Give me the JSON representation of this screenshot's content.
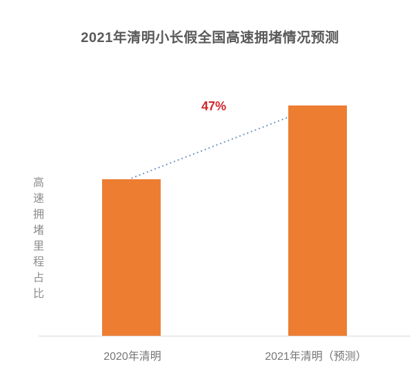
{
  "page": {
    "background": "#ffffff"
  },
  "colors": {
    "bar": "#ED7D31",
    "trendline": "#6F94C4",
    "annotation": "#D2232A",
    "axis_line": "#D9D9D9",
    "title_text": "#595959",
    "x_axis_label_text": "#757575",
    "y_axis_title_text": "#8C8C8C"
  },
  "chart_data": {
    "type": "bar",
    "title": "2021年清明小长假全国高速拥堵情况预测",
    "categories": [
      "2020年清明",
      "2021年清明（预测）"
    ],
    "values": [
      100,
      147
    ],
    "values_note": "relative index estimated from bar heights; 2021 bar is 47% taller than 2020 bar",
    "ylabel": "高速拥堵里程占比",
    "xlabel": "",
    "annotations": [
      {
        "text": "47%"
      }
    ],
    "trendline": {
      "style": "dotted",
      "connects": [
        "2020年清明",
        "2021年清明（预测）"
      ]
    },
    "legend": "none",
    "grid": false,
    "y_axis_ticks": "none",
    "ylim": [
      0,
      160
    ]
  }
}
